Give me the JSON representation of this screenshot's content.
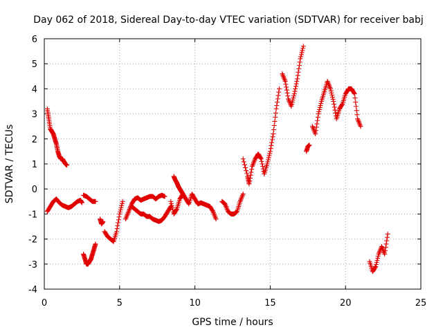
{
  "chart_data": {
    "type": "scatter",
    "title": "Day 062 of 2018, Sidereal Day-to-day VTEC variation (SDTVAR) for receiver babj",
    "xlabel": "GPS time / hours",
    "ylabel": "SDTVAR / TECUs",
    "xlim": [
      0,
      25
    ],
    "ylim": [
      -4,
      6
    ],
    "xticks": [
      0,
      5,
      10,
      15,
      20,
      25
    ],
    "yticks": [
      -4,
      -3,
      -2,
      -1,
      0,
      1,
      2,
      3,
      4,
      5,
      6
    ],
    "grid": true,
    "marker": "+",
    "color": "#e00000",
    "series": [
      {
        "name": "SDTVAR",
        "segments": [
          {
            "x": [
              0.2,
              0.3,
              0.4,
              0.5,
              0.6,
              0.7,
              0.8,
              0.9,
              1.0,
              1.1,
              1.2,
              1.3,
              1.4,
              1.5
            ],
            "y": [
              3.2,
              2.8,
              2.4,
              2.3,
              2.2,
              2.0,
              1.8,
              1.5,
              1.3,
              1.2,
              1.2,
              1.1,
              1.0,
              0.95
            ]
          },
          {
            "x": [
              0.2,
              0.4,
              0.6,
              0.8,
              1.0,
              1.2,
              1.4,
              1.6,
              1.8,
              2.0,
              2.2,
              2.4,
              2.5
            ],
            "y": [
              -0.9,
              -0.7,
              -0.5,
              -0.4,
              -0.55,
              -0.65,
              -0.7,
              -0.75,
              -0.7,
              -0.6,
              -0.5,
              -0.45,
              -0.55
            ]
          },
          {
            "x": [
              2.6,
              2.8,
              3.0,
              3.2,
              3.4
            ],
            "y": [
              -0.25,
              -0.3,
              -0.4,
              -0.5,
              -0.5
            ]
          },
          {
            "x": [
              2.6,
              2.7,
              2.8,
              2.9,
              3.0,
              3.1,
              3.2,
              3.3,
              3.4
            ],
            "y": [
              -2.6,
              -2.8,
              -3.0,
              -3.0,
              -2.9,
              -2.8,
              -2.6,
              -2.4,
              -2.2
            ]
          },
          {
            "x": [
              3.7,
              3.8,
              3.9
            ],
            "y": [
              -1.2,
              -1.4,
              -1.3
            ]
          },
          {
            "x": [
              4.0,
              4.2,
              4.4,
              4.6,
              4.8,
              5.0,
              5.2
            ],
            "y": [
              -1.7,
              -1.9,
              -2.0,
              -2.1,
              -1.7,
              -1.0,
              -0.5
            ]
          },
          {
            "x": [
              5.4,
              5.6,
              5.8,
              6.0,
              6.2,
              6.4,
              6.6,
              6.8,
              7.0,
              7.2,
              7.4,
              7.6,
              7.8,
              8.0
            ],
            "y": [
              -1.2,
              -0.9,
              -0.6,
              -0.4,
              -0.35,
              -0.45,
              -0.4,
              -0.35,
              -0.3,
              -0.3,
              -0.4,
              -0.3,
              -0.25,
              -0.3
            ]
          },
          {
            "x": [
              5.8,
              6.0,
              6.2,
              6.4,
              6.6,
              6.8,
              7.0,
              7.2,
              7.4,
              7.6,
              7.8,
              8.0,
              8.2,
              8.4
            ],
            "y": [
              -0.7,
              -0.8,
              -0.9,
              -1.0,
              -1.0,
              -1.1,
              -1.1,
              -1.2,
              -1.25,
              -1.3,
              -1.25,
              -1.1,
              -0.9,
              -0.7
            ]
          },
          {
            "x": [
              8.6,
              8.7,
              8.8,
              8.9,
              9.0,
              9.1,
              9.2
            ],
            "y": [
              0.5,
              0.35,
              0.25,
              0.1,
              0.0,
              -0.1,
              -0.2
            ]
          },
          {
            "x": [
              8.4,
              8.6,
              8.8,
              9.0,
              9.2,
              9.4,
              9.6,
              9.8,
              10.0,
              10.2,
              10.4,
              10.6,
              10.8,
              11.0,
              11.2,
              11.4
            ],
            "y": [
              -0.5,
              -1.0,
              -0.8,
              -0.4,
              -0.2,
              -0.4,
              -0.6,
              -0.2,
              -0.4,
              -0.6,
              -0.55,
              -0.6,
              -0.65,
              -0.7,
              -0.9,
              -1.2
            ]
          },
          {
            "x": [
              11.8,
              12.0,
              12.2,
              12.4,
              12.6,
              12.8,
              13.0,
              13.2
            ],
            "y": [
              -0.5,
              -0.6,
              -0.9,
              -1.0,
              -1.0,
              -0.9,
              -0.5,
              -0.2
            ]
          },
          {
            "x": [
              13.2,
              13.5,
              13.6,
              13.8,
              14.0,
              14.2,
              14.4,
              14.6,
              14.8,
              15.0,
              15.2,
              15.4,
              15.6
            ],
            "y": [
              1.2,
              0.5,
              0.2,
              0.9,
              1.2,
              1.4,
              1.2,
              0.6,
              1.0,
              1.5,
              2.2,
              3.2,
              4.0
            ]
          },
          {
            "x": [
              15.8,
              16.0,
              16.2,
              16.4,
              16.6,
              16.8,
              17.0,
              17.2
            ],
            "y": [
              4.6,
              4.3,
              3.6,
              3.3,
              3.8,
              4.4,
              5.2,
              5.7
            ]
          },
          {
            "x": [
              17.4,
              17.5,
              17.6
            ],
            "y": [
              1.5,
              1.7,
              1.75
            ]
          },
          {
            "x": [
              17.8,
              18.0,
              18.2,
              18.4,
              18.6,
              18.8,
              19.0,
              19.2,
              19.4,
              19.6,
              19.8,
              20.0,
              20.2,
              20.4,
              20.6,
              20.8,
              21.0
            ],
            "y": [
              2.5,
              2.2,
              3.0,
              3.5,
              3.9,
              4.3,
              4.0,
              3.5,
              2.8,
              3.2,
              3.4,
              3.8,
              4.0,
              4.0,
              3.8,
              2.8,
              2.5
            ]
          },
          {
            "x": [
              21.6,
              21.8,
              22.0,
              22.2,
              22.4,
              22.6,
              22.8
            ],
            "y": [
              -2.9,
              -3.3,
              -3.1,
              -2.6,
              -2.3,
              -2.6,
              -1.8
            ]
          }
        ]
      }
    ]
  }
}
